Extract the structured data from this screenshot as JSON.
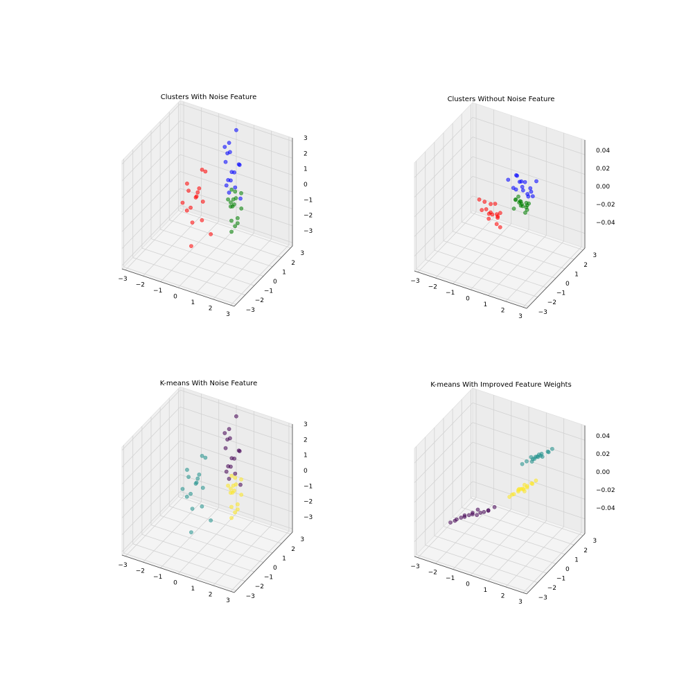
{
  "chart_data": [
    {
      "type": "scatter",
      "title": "Clusters With Noise Feature",
      "xlim": [
        -3.2,
        3.2
      ],
      "ylim": [
        -3.2,
        3.2
      ],
      "zlim": [
        -3.2,
        3.2
      ],
      "xticks": [
        {
          "value": -3,
          "label": "−3"
        },
        {
          "value": -2,
          "label": "−2"
        },
        {
          "value": -1,
          "label": "−1"
        },
        0,
        1,
        2,
        3
      ],
      "yticks": [
        {
          "value": -3,
          "label": "−3"
        },
        {
          "value": -2,
          "label": "−2"
        },
        {
          "value": -1,
          "label": "−1"
        },
        0,
        1,
        2,
        3
      ],
      "zticks": [
        {
          "value": -3,
          "label": "−3"
        },
        {
          "value": -2,
          "label": "−2"
        },
        {
          "value": -1,
          "label": "−1"
        },
        0,
        1,
        2,
        3
      ],
      "series": [
        {
          "color": "#ff0000",
          "x": [
            -0.6,
            -1.1,
            -0.2,
            -0.9,
            -0.4,
            -1.3,
            0.1,
            -0.7,
            -0.5,
            -1.0,
            -0.3,
            -0.8,
            0.0,
            -0.6,
            -1.2,
            -0.4
          ],
          "y": [
            -0.1,
            0.3,
            -0.5,
            0.1,
            -0.4,
            -0.2,
            0.2,
            -0.7,
            0.4,
            -0.3,
            0.0,
            0.5,
            -0.2,
            -0.6,
            0.1,
            0.3
          ],
          "z": [
            0.2,
            -0.8,
            1.1,
            -1.5,
            0.5,
            -0.3,
            -1.9,
            0.9,
            1.6,
            -0.6,
            -1.1,
            0.1,
            2.0,
            -2.4,
            0.7,
            -0.2
          ]
        },
        {
          "color": "#0000ff",
          "x": [
            0.1,
            -0.3,
            0.4,
            -0.1,
            0.3,
            0.0,
            -0.4,
            0.2,
            0.5,
            -0.2,
            0.1,
            0.3,
            -0.1,
            0.6,
            0.0,
            -0.3
          ],
          "y": [
            2.5,
            2.8,
            2.3,
            2.6,
            2.9,
            2.4,
            2.7,
            2.2,
            2.6,
            2.5,
            3.0,
            2.4,
            2.7,
            2.5,
            2.3,
            2.6
          ],
          "z": [
            0.5,
            1.3,
            -0.2,
            2.1,
            0.8,
            -0.7,
            1.7,
            0.2,
            1.0,
            -0.4,
            2.7,
            0.6,
            1.5,
            -0.9,
            0.1,
            0.9
          ]
        },
        {
          "color": "#008000",
          "x": [
            0.5,
            0.2,
            0.8,
            0.4,
            0.6,
            0.3,
            0.9,
            0.5,
            0.1,
            0.7,
            0.4,
            0.6,
            0.2,
            0.8,
            0.5,
            0.3
          ],
          "y": [
            2.0,
            2.3,
            1.8,
            2.1,
            1.9,
            2.2,
            2.0,
            1.7,
            2.1,
            2.4,
            1.9,
            2.0,
            2.2,
            1.8,
            2.1,
            2.0
          ],
          "z": [
            -1.0,
            -0.4,
            -1.6,
            -0.8,
            -2.2,
            -1.3,
            -0.2,
            -1.8,
            -0.9,
            -1.4,
            -2.6,
            -0.6,
            -1.1,
            -1.9,
            -0.3,
            -1.2
          ]
        }
      ]
    },
    {
      "type": "scatter",
      "title": "Clusters Without Noise Feature",
      "xlim": [
        -3.2,
        3.2
      ],
      "ylim": [
        -3.2,
        3.2
      ],
      "zlim": [
        -0.055,
        0.055
      ],
      "xticks": [
        {
          "value": -3,
          "label": "−3"
        },
        {
          "value": -2,
          "label": "−2"
        },
        {
          "value": -1,
          "label": "−1"
        },
        0,
        1,
        2,
        3
      ],
      "yticks": [
        {
          "value": -3,
          "label": "−3"
        },
        {
          "value": -2,
          "label": "−2"
        },
        {
          "value": -1,
          "label": "−1"
        },
        0,
        1,
        2,
        3
      ],
      "zticks": [
        {
          "value": -0.04,
          "label": "−0.04"
        },
        {
          "value": -0.02,
          "label": "−0.02"
        },
        {
          "value": 0,
          "label": "0.00"
        },
        0.02,
        0.04
      ],
      "series": [
        {
          "color": "#ff0000",
          "x": [
            -0.1,
            -0.6,
            0.4,
            -0.3,
            0.2,
            -0.8,
            0.0,
            0.5,
            -0.4,
            0.1,
            -0.2,
            0.3,
            -0.5,
            0.6,
            -0.1,
            0.2
          ],
          "y": [
            -0.8,
            -0.5,
            -1.1,
            -0.9,
            -0.6,
            -0.7,
            -1.2,
            -0.9,
            -0.4,
            -1.0,
            -0.6,
            -0.8,
            -1.0,
            -1.1,
            -0.3,
            -0.7
          ],
          "z": [
            0.0,
            0.005,
            -0.006,
            0.003,
            -0.004,
            0.008,
            -0.002,
            0.004,
            -0.007,
            0.001,
            0.006,
            -0.003,
            0.002,
            -0.008,
            0.004,
            -0.001
          ]
        },
        {
          "color": "#0000ff",
          "x": [
            0.2,
            -0.3,
            0.7,
            0.0,
            0.5,
            -0.5,
            0.3,
            0.9,
            -0.1,
            0.4,
            0.1,
            0.6,
            -0.2,
            0.8,
            0.2,
            0.0
          ],
          "y": [
            2.1,
            2.4,
            1.8,
            2.2,
            2.5,
            1.9,
            2.0,
            2.3,
            1.7,
            2.6,
            2.2,
            1.9,
            2.3,
            2.1,
            2.4,
            1.8
          ],
          "z": [
            0.0,
            0.006,
            -0.004,
            0.003,
            -0.007,
            0.005,
            -0.002,
            0.008,
            0.001,
            -0.005,
            0.004,
            -0.003,
            0.007,
            -0.006,
            0.002,
            -0.001
          ]
        },
        {
          "color": "#008000",
          "x": [
            0.9,
            0.6,
            1.2,
            0.8,
            1.1,
            0.7,
            1.0,
            1.3,
            0.5,
            0.9,
            1.1,
            0.8,
            0.6,
            1.2,
            1.0,
            0.9
          ],
          "y": [
            0.7,
            0.9,
            0.5,
            0.6,
            0.8,
            0.4,
            1.0,
            0.7,
            0.6,
            0.5,
            0.9,
            0.8,
            0.6,
            0.7,
            0.4,
            0.8
          ],
          "z": [
            0.0,
            0.004,
            -0.005,
            0.002,
            -0.003,
            0.006,
            -0.001,
            0.003,
            -0.006,
            0.005,
            -0.002,
            0.001,
            0.004,
            -0.004,
            0.002,
            -0.003
          ]
        }
      ]
    },
    {
      "type": "scatter",
      "title": "K-means With Noise Feature",
      "xlim": [
        -3.2,
        3.2
      ],
      "ylim": [
        -3.2,
        3.2
      ],
      "zlim": [
        -3.2,
        3.2
      ],
      "xticks": [
        {
          "value": -3,
          "label": "−3"
        },
        {
          "value": -2,
          "label": "−2"
        },
        {
          "value": -1,
          "label": "−1"
        },
        0,
        1,
        2,
        3
      ],
      "yticks": [
        {
          "value": -3,
          "label": "−3"
        },
        {
          "value": -2,
          "label": "−2"
        },
        {
          "value": -1,
          "label": "−1"
        },
        0,
        1,
        2,
        3
      ],
      "zticks": [
        {
          "value": -3,
          "label": "−3"
        },
        {
          "value": -2,
          "label": "−2"
        },
        {
          "value": -1,
          "label": "−1"
        },
        0,
        1,
        2,
        3
      ],
      "series": [
        {
          "color": "#21918c",
          "x": [
            -0.6,
            -1.1,
            -0.2,
            -0.9,
            -0.4,
            -1.3,
            0.1,
            -0.7,
            -0.5,
            -1.0,
            -0.3,
            -0.8,
            0.0,
            -0.6,
            -1.2,
            -0.4
          ],
          "y": [
            -0.1,
            0.3,
            -0.5,
            0.1,
            -0.4,
            -0.2,
            0.2,
            -0.7,
            0.4,
            -0.3,
            0.0,
            0.5,
            -0.2,
            -0.6,
            0.1,
            0.3
          ],
          "z": [
            0.2,
            -0.8,
            1.1,
            -1.5,
            0.5,
            -0.3,
            -1.9,
            0.9,
            1.6,
            -0.6,
            -1.1,
            0.1,
            2.0,
            -2.4,
            0.7,
            -0.2
          ]
        },
        {
          "color": "#440154",
          "x": [
            0.1,
            -0.3,
            0.4,
            -0.1,
            0.3,
            0.0,
            -0.4,
            0.2,
            0.5,
            -0.2,
            0.1,
            0.3,
            -0.1,
            0.6,
            0.0,
            -0.3
          ],
          "y": [
            2.5,
            2.8,
            2.3,
            2.6,
            2.9,
            2.4,
            2.7,
            2.2,
            2.6,
            2.5,
            3.0,
            2.4,
            2.7,
            2.5,
            2.3,
            2.6
          ],
          "z": [
            0.5,
            1.3,
            -0.2,
            2.1,
            0.8,
            -0.7,
            1.7,
            0.2,
            1.0,
            -0.4,
            2.7,
            0.6,
            1.5,
            -0.9,
            0.1,
            0.9
          ]
        },
        {
          "color": "#fde725",
          "x": [
            0.5,
            0.2,
            0.8,
            0.4,
            0.6,
            0.3,
            0.9,
            0.5,
            0.1,
            0.7,
            0.4,
            0.6,
            0.2,
            0.8,
            0.5,
            0.3
          ],
          "y": [
            2.0,
            2.3,
            1.8,
            2.1,
            1.9,
            2.2,
            2.0,
            1.7,
            2.1,
            2.4,
            1.9,
            2.0,
            2.2,
            1.8,
            2.1,
            2.0
          ],
          "z": [
            -1.0,
            -0.4,
            -1.6,
            -0.8,
            -2.2,
            -1.3,
            -0.2,
            -1.8,
            -0.9,
            -1.4,
            -2.6,
            -0.6,
            -1.1,
            -1.9,
            -0.3,
            -1.2
          ]
        }
      ]
    },
    {
      "type": "scatter",
      "title": "K-means With Improved Feature Weights",
      "xlim": [
        -3.2,
        3.2
      ],
      "ylim": [
        -3.2,
        3.2
      ],
      "zlim": [
        -0.055,
        0.055
      ],
      "xticks": [
        {
          "value": -3,
          "label": "−3"
        },
        {
          "value": -2,
          "label": "−2"
        },
        {
          "value": -1,
          "label": "−1"
        },
        0,
        1,
        2,
        3
      ],
      "yticks": [
        {
          "value": -3,
          "label": "−3"
        },
        {
          "value": -2,
          "label": "−2"
        },
        {
          "value": -1,
          "label": "−1"
        },
        0,
        1,
        2,
        3
      ],
      "zticks": [
        {
          "value": -0.04,
          "label": "−0.04"
        },
        {
          "value": -0.02,
          "label": "−0.02"
        },
        {
          "value": 0,
          "label": "0.00"
        },
        0.02,
        0.04
      ],
      "series": [
        {
          "color": "#440154",
          "x": [
            -0.2,
            -1.0,
            0.6,
            -0.6,
            0.2,
            -1.3,
            0.9,
            -0.4,
            0.0,
            -0.8,
            0.4,
            -1.1,
            0.7,
            -0.3,
            0.1,
            -0.7
          ],
          "y": [
            -2.6,
            -2.8,
            -2.4,
            -2.7,
            -2.5,
            -2.9,
            -2.3,
            -2.6,
            -2.4,
            -2.7,
            -2.5,
            -2.8,
            -2.6,
            -2.4,
            -2.7,
            -2.5
          ],
          "z": [
            0.0,
            -0.008,
            0.007,
            -0.004,
            0.003,
            -0.012,
            0.011,
            -0.002,
            0.004,
            -0.006,
            0.005,
            -0.01,
            0.009,
            -0.001,
            0.002,
            -0.005
          ]
        },
        {
          "color": "#fde725",
          "x": [
            0.9,
            0.5,
            1.3,
            0.7,
            1.1,
            0.3,
            1.5,
            0.8,
            1.0,
            0.6,
            1.2,
            0.9,
            0.4,
            1.4,
            0.8,
            1.0
          ],
          "y": [
            0.8,
            0.6,
            1.0,
            0.7,
            0.9,
            0.5,
            1.1,
            0.6,
            0.8,
            0.9,
            0.7,
            1.0,
            0.6,
            0.9,
            0.8,
            0.7
          ],
          "z": [
            0.0,
            -0.006,
            0.006,
            -0.003,
            0.003,
            -0.009,
            0.009,
            0.001,
            -0.002,
            -0.004,
            0.004,
            0.002,
            -0.007,
            0.007,
            -0.001,
            0.001
          ]
        },
        {
          "color": "#21918c",
          "x": [
            1.0,
            0.5,
            1.5,
            0.8,
            1.2,
            0.3,
            1.7,
            0.9,
            1.1,
            0.6,
            1.4,
            1.0,
            0.7,
            1.6,
            0.9,
            1.2
          ],
          "y": [
            2.2,
            2.0,
            2.4,
            2.1,
            2.3,
            1.9,
            2.5,
            2.2,
            2.1,
            2.3,
            2.0,
            2.4,
            2.2,
            2.3,
            2.1,
            2.2
          ],
          "z": [
            0.02,
            0.014,
            0.026,
            0.017,
            0.023,
            0.011,
            0.029,
            0.019,
            0.021,
            0.016,
            0.024,
            0.02,
            0.013,
            0.027,
            0.018,
            0.022
          ]
        }
      ]
    }
  ]
}
